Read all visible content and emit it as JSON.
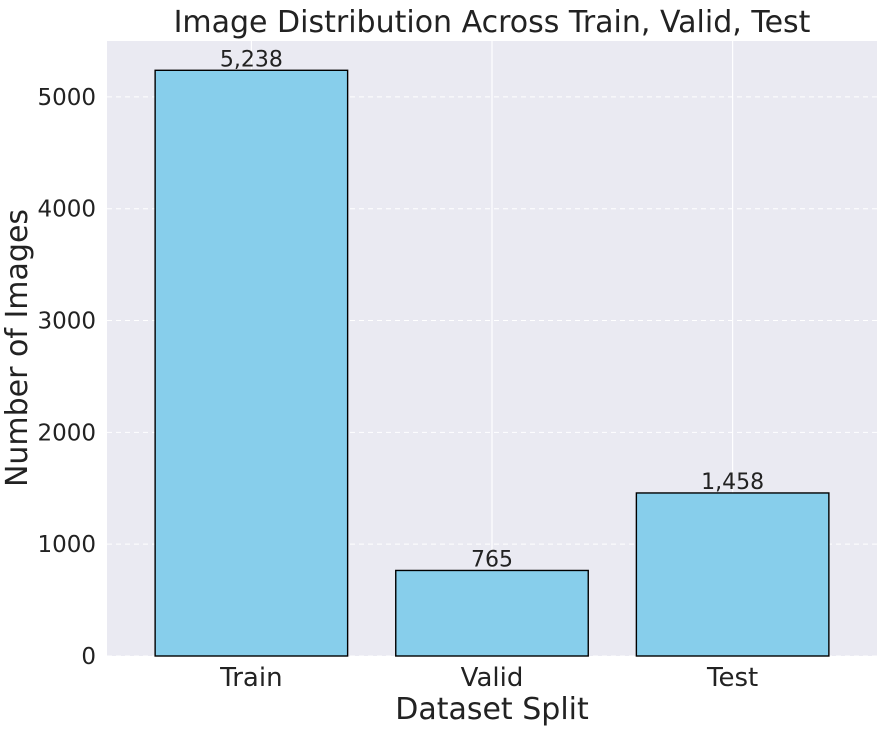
{
  "chart_data": {
    "type": "bar",
    "title": "Image Distribution Across Train, Valid, Test",
    "xlabel": "Dataset Split",
    "ylabel": "Number of Images",
    "categories": [
      "Train",
      "Valid",
      "Test"
    ],
    "values": [
      5238,
      765,
      1458
    ],
    "data_labels": [
      "5,238",
      "765",
      "1,458"
    ],
    "ylim": [
      0,
      5500
    ],
    "yticks": [
      0,
      1000,
      2000,
      3000,
      4000,
      5000
    ],
    "ytick_labels": [
      "0",
      "1000",
      "2000",
      "3000",
      "4000",
      "5000"
    ],
    "grid": true,
    "legend": "none",
    "colors": {
      "bar_fill": "#87CEEB",
      "bar_edge": "#000000",
      "plot_background": "#EAEAF2",
      "grid": "#FFFFFF"
    }
  }
}
